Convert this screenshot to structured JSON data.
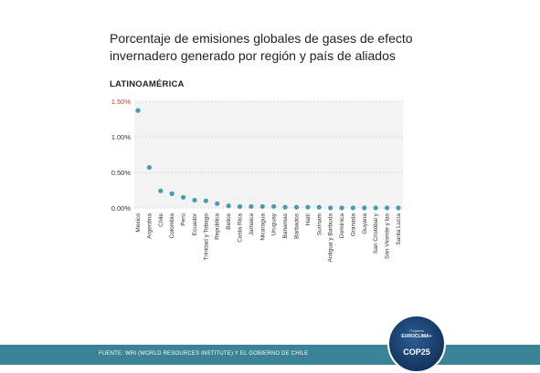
{
  "title": "Porcentaje de emisiones globales de gases de efecto invernadero generado por región y país de aliados",
  "region_label": "LATINOAMÉRICA",
  "footer": {
    "prefix": "FUENTE:",
    "source": "WRI (WORLD RESOURCES INSTITUTE) Y EL GOBIERNO DE CHILE"
  },
  "badge": {
    "line1": "Programa",
    "line2": "EUROCLIMA+",
    "main": "COP25"
  },
  "colors": {
    "point": "#4a9bb0",
    "top_tick": "#c0392b",
    "grid": "#d7d7d7",
    "plot_bg": "#f3f3f3",
    "footer_bg": "#3a8296"
  },
  "chart_data": {
    "type": "scatter",
    "ylim": [
      0,
      1.5
    ],
    "yticks": [
      0,
      0.5,
      1.0,
      1.5
    ],
    "ytick_labels": [
      "0.00%",
      "0.50%",
      "1.00%",
      "1.50%"
    ],
    "grid": true,
    "categories": [
      "Mexico",
      "Argentina",
      "Chile",
      "Colombia",
      "Perú",
      "Ecuador",
      "Trinidad y Tobago",
      "República",
      "Belice",
      "Costa Rica",
      "Jamaica",
      "Nicaragua",
      "Uruguay",
      "Bahamas",
      "Barbados",
      "Haití",
      "Surinam",
      "Antigua y Barbuda",
      "Dominica",
      "Granada",
      "Guyana",
      "San Cristóbal y",
      "San Vicente y las",
      "Santa Lucía"
    ],
    "values": [
      1.37,
      0.57,
      0.24,
      0.2,
      0.15,
      0.11,
      0.1,
      0.06,
      0.03,
      0.02,
      0.02,
      0.02,
      0.02,
      0.01,
      0.01,
      0.01,
      0.01,
      0.0,
      0.0,
      0.0,
      0.0,
      0.0,
      0.0,
      0.0
    ]
  }
}
